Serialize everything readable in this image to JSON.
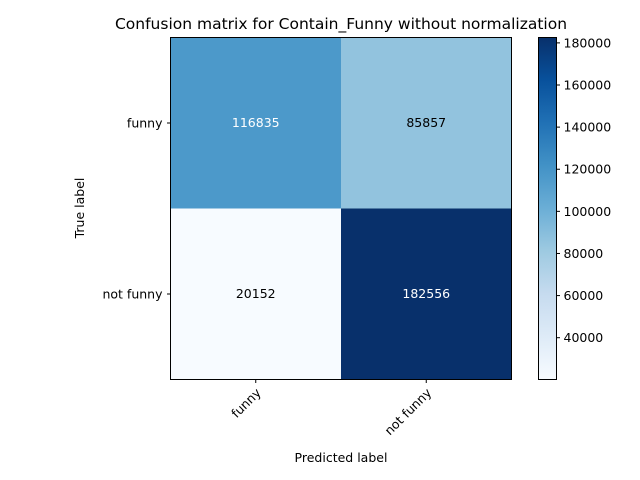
{
  "chart_data": {
    "type": "heatmap",
    "title": "Confusion matrix for Contain_Funny without normalization",
    "xlabel": "Predicted label",
    "ylabel": "True label",
    "x_categories": [
      "funny",
      "not funny"
    ],
    "y_categories": [
      "funny",
      "not funny"
    ],
    "values": [
      [
        116835,
        85857
      ],
      [
        20152,
        182556
      ]
    ],
    "colormap": "Blues",
    "colorbar": {
      "range": [
        20152,
        182556
      ],
      "ticks": [
        40000,
        60000,
        80000,
        100000,
        120000,
        140000,
        160000,
        180000
      ],
      "tick_labels": [
        "40000",
        "60000",
        "80000",
        "100000",
        "120000",
        "140000",
        "160000",
        "180000"
      ]
    },
    "text_colors": {
      "light": "#ffffff",
      "dark": "#000000"
    }
  }
}
